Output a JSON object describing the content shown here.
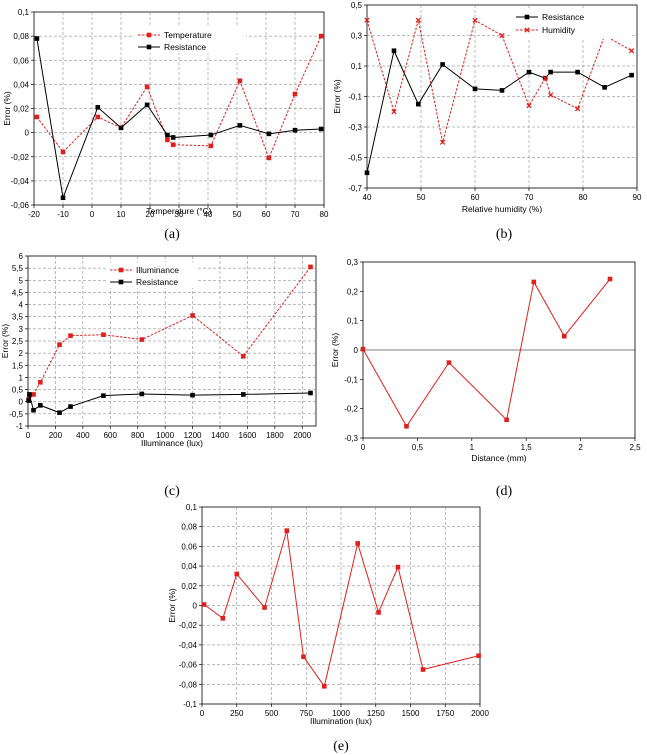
{
  "chart_data": [
    {
      "id": "a",
      "type": "line",
      "panel_label": "(a)",
      "xlabel": "Temperature (°C)",
      "ylabel": "Error (%)",
      "xlim": [
        -20,
        80
      ],
      "ylim": [
        -0.06,
        0.1
      ],
      "xticks": [
        -20,
        -10,
        0,
        10,
        20,
        30,
        40,
        50,
        60,
        70,
        80
      ],
      "yticks": [
        -0.06,
        -0.04,
        -0.02,
        0,
        0.02,
        0.04,
        0.06,
        0.08,
        0.1
      ],
      "ytick_labels": [
        "-0,06",
        "-0,04",
        "-0,02",
        "0",
        "0,02",
        "0,04",
        "0,06",
        "0,08",
        "0,1"
      ],
      "grid": "dashed",
      "legend_position": "top-center",
      "series": [
        {
          "name": "Temperature",
          "color": "#e0201b",
          "dash": true,
          "marker": "square",
          "x": [
            -19,
            -10,
            2,
            10,
            19,
            26,
            28,
            41,
            51,
            61,
            70,
            79
          ],
          "y": [
            0.013,
            -0.016,
            0.013,
            0.004,
            0.038,
            -0.006,
            -0.01,
            -0.011,
            0.043,
            -0.021,
            0.032,
            0.08
          ]
        },
        {
          "name": "Resistance",
          "color": "#000000",
          "dash": false,
          "marker": "square",
          "x": [
            -19,
            -10,
            2,
            10,
            19,
            26,
            28,
            41,
            51,
            61,
            70,
            79
          ],
          "y": [
            0.078,
            -0.054,
            0.021,
            0.004,
            0.023,
            -0.002,
            -0.004,
            -0.002,
            0.006,
            -0.001,
            0.002,
            0.003
          ]
        }
      ]
    },
    {
      "id": "b",
      "type": "line",
      "panel_label": "(b)",
      "xlabel": "Relative humidity (%)",
      "ylabel": "Error (%)",
      "xlim": [
        40,
        90
      ],
      "ylim": [
        -0.7,
        0.5
      ],
      "xticks": [
        40,
        50,
        60,
        70,
        80,
        90
      ],
      "yticks": [
        -0.7,
        -0.5,
        -0.3,
        -0.1,
        0.1,
        0.3,
        0.5
      ],
      "ytick_labels": [
        "-0,7",
        "-0,5",
        "-0,3",
        "-0,1",
        "0,1",
        "0,3",
        "0,5"
      ],
      "grid": "dashed",
      "legend_position": "top-right",
      "series": [
        {
          "name": "Resistance",
          "color": "#000000",
          "dash": false,
          "marker": "square",
          "x": [
            40,
            45,
            49.5,
            54,
            60,
            65,
            70,
            73,
            74,
            79,
            84,
            89
          ],
          "y": [
            -0.6,
            0.2,
            -0.15,
            0.11,
            -0.05,
            -0.06,
            0.06,
            0.02,
            0.06,
            0.06,
            -0.04,
            0.04
          ]
        },
        {
          "name": "Humidity",
          "color": "#e0201b",
          "dash": true,
          "marker": "x",
          "x": [
            40,
            45,
            49.5,
            54,
            60,
            65,
            70,
            73,
            74,
            79,
            84,
            89
          ],
          "y": [
            0.4,
            -0.2,
            0.4,
            -0.4,
            0.4,
            0.3,
            -0.16,
            0.02,
            -0.09,
            -0.18,
            0.3,
            0.2
          ]
        }
      ]
    },
    {
      "id": "c",
      "type": "line",
      "panel_label": "(c)",
      "xlabel": "Illuminance (lux)",
      "ylabel": "Error (%)",
      "xlim": [
        0,
        2100
      ],
      "ylim": [
        -1,
        6
      ],
      "xticks": [
        0,
        200,
        400,
        600,
        800,
        1000,
        1200,
        1400,
        1600,
        1800,
        2000
      ],
      "yticks": [
        -1,
        -0.5,
        0,
        0.5,
        1,
        1.5,
        2,
        2.5,
        3,
        3.5,
        4,
        4.5,
        5,
        5.5,
        6
      ],
      "ytick_labels": [
        "-1",
        "-0,5",
        "0",
        "0,5",
        "1",
        "1,5",
        "2",
        "2,5",
        "3",
        "3,5",
        "4",
        "4,5",
        "5",
        "5,5",
        "6"
      ],
      "grid": "dashed",
      "legend_position": "top-left",
      "series": [
        {
          "name": "Illuminance",
          "color": "#e0201b",
          "dash": true,
          "marker": "square",
          "x": [
            5,
            10,
            40,
            90,
            230,
            310,
            550,
            830,
            1200,
            1570,
            2060
          ],
          "y": [
            0.1,
            0.25,
            0.3,
            0.8,
            2.35,
            2.72,
            2.76,
            2.56,
            3.55,
            1.87,
            5.55
          ]
        },
        {
          "name": "Resistance",
          "color": "#000000",
          "dash": false,
          "marker": "square",
          "x": [
            5,
            10,
            40,
            90,
            230,
            310,
            550,
            830,
            1200,
            1570,
            2060
          ],
          "y": [
            0.05,
            0.3,
            -0.35,
            -0.15,
            -0.45,
            -0.2,
            0.25,
            0.32,
            0.27,
            0.3,
            0.36
          ]
        }
      ]
    },
    {
      "id": "d",
      "type": "line",
      "panel_label": "(d)",
      "xlabel": "Distance (mm)",
      "ylabel": "Error (%)",
      "xlim": [
        0,
        2.5
      ],
      "ylim": [
        -0.3,
        0.3
      ],
      "xticks": [
        0,
        0.5,
        1,
        1.5,
        2,
        2.5
      ],
      "xtick_labels": [
        "0",
        "0,5",
        "1",
        "1,5",
        "2",
        "2,5"
      ],
      "yticks": [
        -0.3,
        -0.2,
        -0.1,
        0,
        0.1,
        0.2,
        0.3
      ],
      "ytick_labels": [
        "-0,3",
        "-0,2",
        "-0,1",
        "0",
        "0,1",
        "0,2",
        "0,3"
      ],
      "grid": "none",
      "series": [
        {
          "name": "",
          "color": "#e0201b",
          "dash": false,
          "marker": "square",
          "x": [
            0,
            0.4,
            0.79,
            1.32,
            1.57,
            1.85,
            2.27
          ],
          "y": [
            0.003,
            -0.26,
            -0.043,
            -0.238,
            0.232,
            0.047,
            0.242
          ]
        }
      ]
    },
    {
      "id": "e",
      "type": "line",
      "panel_label": "(e)",
      "xlabel": "Illumination (lux)",
      "ylabel": "Error (%)",
      "xlim": [
        0,
        2000
      ],
      "ylim": [
        -0.1,
        0.1
      ],
      "xticks": [
        0,
        250,
        500,
        750,
        1000,
        1250,
        1500,
        1750,
        2000
      ],
      "yticks": [
        -0.1,
        -0.08,
        -0.06,
        -0.04,
        -0.02,
        0,
        0.02,
        0.04,
        0.06,
        0.08,
        0.1
      ],
      "ytick_labels": [
        "-0,1",
        "-0,08",
        "-0,06",
        "-0,04",
        "-0,02",
        "0",
        "0,02",
        "0,04",
        "0,06",
        "0,08",
        "0,1"
      ],
      "grid": "dashed",
      "series": [
        {
          "name": "",
          "color": "#e0201b",
          "dash": false,
          "marker": "square",
          "x": [
            15,
            150,
            250,
            450,
            610,
            730,
            880,
            1120,
            1270,
            1410,
            1590,
            1990
          ],
          "y": [
            0.001,
            -0.013,
            0.032,
            -0.002,
            0.076,
            -0.052,
            -0.082,
            0.063,
            -0.007,
            0.039,
            -0.065,
            -0.051
          ]
        }
      ]
    }
  ]
}
